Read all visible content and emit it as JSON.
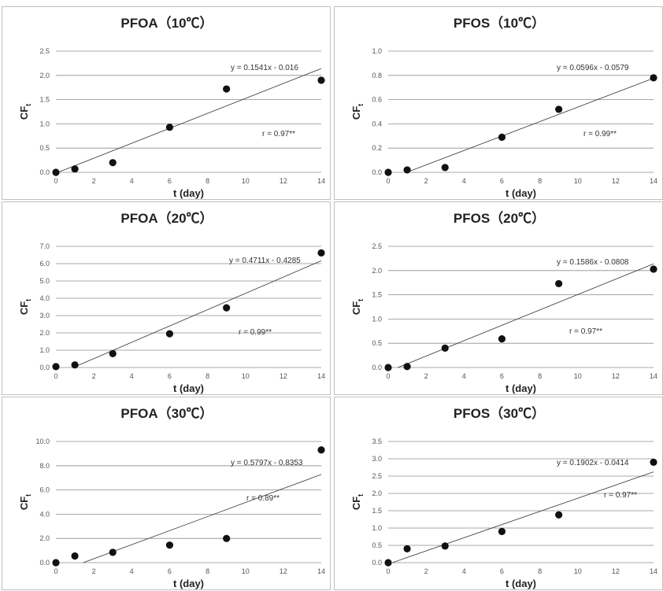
{
  "chart_data": [
    {
      "type": "scatter",
      "title": "PFOA（10℃）",
      "xlabel": "t (day)",
      "ylabel": "CF",
      "ylabel_sub": "t",
      "xticks": [
        "0",
        "2",
        "4",
        "6",
        "8",
        "10",
        "12",
        "14"
      ],
      "yticks": [
        "0.0",
        "0.5",
        "1.0",
        "1.5",
        "2.0",
        "2.5"
      ],
      "xlim": [
        0,
        14
      ],
      "ylim": [
        0,
        2.5
      ],
      "x": [
        0,
        1,
        3,
        6,
        9,
        14
      ],
      "y": [
        0.0,
        0.07,
        0.2,
        0.93,
        1.72,
        1.9
      ],
      "trendline": {
        "slope": 0.1541,
        "intercept": -0.016,
        "equation": "y = 0.1541x - 0.016"
      },
      "r_label": "r = 0.97**",
      "grid": true
    },
    {
      "type": "scatter",
      "title": "PFOS（10℃）",
      "xlabel": "t (day)",
      "ylabel": "CF",
      "ylabel_sub": "t",
      "xticks": [
        "0",
        "2",
        "4",
        "6",
        "8",
        "10",
        "12",
        "14"
      ],
      "yticks": [
        "0.0",
        "0.2",
        "0.4",
        "0.6",
        "0.8",
        "1.0"
      ],
      "xlim": [
        0,
        14
      ],
      "ylim": [
        0,
        1.0
      ],
      "x": [
        0,
        1,
        3,
        6,
        9,
        14
      ],
      "y": [
        0.0,
        0.02,
        0.04,
        0.29,
        0.52,
        0.78
      ],
      "trendline": {
        "slope": 0.0596,
        "intercept": -0.0579,
        "equation": "y = 0.0596x - 0.0579"
      },
      "r_label": "r = 0.99**",
      "grid": true
    },
    {
      "type": "scatter",
      "title": "PFOA（20℃）",
      "xlabel": "t (day)",
      "ylabel": "CF",
      "ylabel_sub": "t",
      "xticks": [
        "0",
        "2",
        "4",
        "6",
        "8",
        "10",
        "12",
        "14"
      ],
      "yticks": [
        "0.0",
        "1.0",
        "2.0",
        "3.0",
        "4.0",
        "5.0",
        "6.0",
        "7.0"
      ],
      "xlim": [
        0,
        14
      ],
      "ylim": [
        0,
        7.0
      ],
      "x": [
        0,
        1,
        3,
        6,
        9,
        14
      ],
      "y": [
        0.05,
        0.15,
        0.8,
        1.95,
        3.45,
        6.62
      ],
      "trendline": {
        "slope": 0.4711,
        "intercept": -0.4285,
        "equation": "y = 0.4711x - 0.4285"
      },
      "r_label": "r = 0.99**",
      "grid": true
    },
    {
      "type": "scatter",
      "title": "PFOS（20℃）",
      "xlabel": "t (day)",
      "ylabel": "CF",
      "ylabel_sub": "t",
      "xticks": [
        "0",
        "2",
        "4",
        "6",
        "8",
        "10",
        "12",
        "14"
      ],
      "yticks": [
        "0.0",
        "0.5",
        "1.0",
        "1.5",
        "2.0",
        "2.5"
      ],
      "xlim": [
        0,
        14
      ],
      "ylim": [
        0,
        2.5
      ],
      "x": [
        0,
        1,
        3,
        6,
        9,
        14
      ],
      "y": [
        0.0,
        0.02,
        0.4,
        0.59,
        1.73,
        2.03
      ],
      "trendline": {
        "slope": 0.1586,
        "intercept": -0.0808,
        "equation": "y = 0.1586x - 0.0808"
      },
      "r_label": "r = 0.97**",
      "grid": true
    },
    {
      "type": "scatter",
      "title": "PFOA（30℃）",
      "xlabel": "t (day)",
      "ylabel": "CF",
      "ylabel_sub": "t",
      "xticks": [
        "0",
        "2",
        "4",
        "6",
        "8",
        "10",
        "12",
        "14"
      ],
      "yticks": [
        "0.0",
        "2.0",
        "4.0",
        "6.0",
        "8.0",
        "10.0"
      ],
      "xlim": [
        0,
        14
      ],
      "ylim": [
        0,
        10.0
      ],
      "x": [
        0,
        1,
        3,
        6,
        9,
        14
      ],
      "y": [
        0.0,
        0.55,
        0.85,
        1.45,
        2.0,
        9.3
      ],
      "trendline": {
        "slope": 0.5797,
        "intercept": -0.8353,
        "equation": "y = 0.5797x - 0.8353"
      },
      "r_label": "r = 0.89**",
      "grid": true
    },
    {
      "type": "scatter",
      "title": "PFOS（30℃）",
      "xlabel": "t (day)",
      "ylabel": "CF",
      "ylabel_sub": "t",
      "xticks": [
        "0",
        "2",
        "4",
        "6",
        "8",
        "10",
        "12",
        "14"
      ],
      "yticks": [
        "0.0",
        "0.5",
        "1.0",
        "1.5",
        "2.0",
        "2.5",
        "3.0",
        "3.5"
      ],
      "xlim": [
        0,
        14
      ],
      "ylim": [
        0,
        3.5
      ],
      "x": [
        0,
        1,
        3,
        6,
        9,
        14
      ],
      "y": [
        0.0,
        0.4,
        0.48,
        0.9,
        1.38,
        2.9
      ],
      "trendline": {
        "slope": 0.1902,
        "intercept": -0.0414,
        "equation": "y = 0.1902x - 0.0414"
      },
      "r_label": "r = 0.97**",
      "grid": true
    }
  ]
}
